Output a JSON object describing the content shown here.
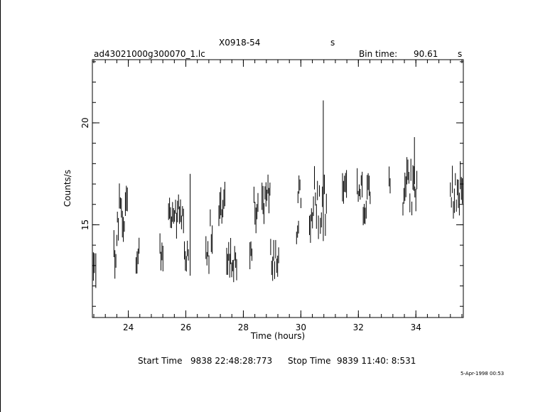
{
  "header": {
    "object": "X0918-54",
    "object_suffix": "s",
    "filename": "ad43021000g300070_1.lc",
    "bin_label": "Bin time:",
    "bin_value": "90.61",
    "bin_unit": "s"
  },
  "footer": {
    "start_label": "Start Time",
    "start_value": "9838 22:48:28:773",
    "stop_label": "Stop Time",
    "stop_value": "9839 11:40: 8:531",
    "date": "5-Apr-1998 00:53"
  },
  "chart_data": {
    "type": "scatter",
    "xlabel": "Time (hours)",
    "ylabel": "Counts/s",
    "xlim": [
      22.75,
      35.65
    ],
    "ylim": [
      10.45,
      23.1
    ],
    "xticks": [
      24,
      26,
      28,
      30,
      32,
      34
    ],
    "yticks": [
      15,
      20
    ],
    "minor_x_step": 0.4,
    "minor_y_step": 1,
    "series": [
      {
        "segments": [
          {
            "t0": 22.75,
            "t1": 22.85,
            "mean": 12.9,
            "spread": 0.8
          },
          {
            "t0": 23.5,
            "t1": 23.62,
            "mean": 13.6,
            "spread": 0.8
          },
          {
            "t0": 23.62,
            "t1": 23.98,
            "mean": 15.6,
            "spread": 1.2
          },
          {
            "t0": 24.27,
            "t1": 24.38,
            "mean": 13.6,
            "spread": 0.8
          },
          {
            "t0": 25.1,
            "t1": 25.21,
            "mean": 13.6,
            "spread": 0.8
          },
          {
            "t0": 25.4,
            "t1": 25.95,
            "mean": 15.5,
            "spread": 0.9
          },
          {
            "t0": 25.95,
            "t1": 26.1,
            "mean": 13.4,
            "spread": 0.8
          },
          {
            "t0": 26.7,
            "t1": 26.81,
            "mean": 13.4,
            "spread": 0.8
          },
          {
            "t0": 26.85,
            "t1": 26.93,
            "mean": 14.9,
            "spread": 1.0
          },
          {
            "t0": 27.15,
            "t1": 27.38,
            "mean": 15.8,
            "spread": 1.0
          },
          {
            "t0": 27.42,
            "t1": 27.8,
            "mean": 13.2,
            "spread": 0.8
          },
          {
            "t0": 28.23,
            "t1": 28.33,
            "mean": 13.3,
            "spread": 0.8
          },
          {
            "t0": 28.37,
            "t1": 28.51,
            "mean": 15.9,
            "spread": 1.1
          },
          {
            "t0": 28.65,
            "t1": 28.93,
            "mean": 16.3,
            "spread": 1.1
          },
          {
            "t0": 28.95,
            "t1": 29.25,
            "mean": 13.4,
            "spread": 0.8
          },
          {
            "t0": 29.85,
            "t1": 29.93,
            "mean": 14.1,
            "spread": 1.0
          },
          {
            "t0": 29.9,
            "t1": 30.03,
            "mean": 16.7,
            "spread": 0.9
          },
          {
            "t0": 30.3,
            "t1": 30.9,
            "mean": 16.0,
            "spread": 1.7
          },
          {
            "t0": 31.45,
            "t1": 31.62,
            "mean": 16.4,
            "spread": 1.0
          },
          {
            "t0": 31.96,
            "t1": 32.42,
            "mean": 16.3,
            "spread": 1.2
          },
          {
            "t0": 33.07,
            "t1": 33.12,
            "mean": 17.3,
            "spread": 0.6
          },
          {
            "t0": 33.55,
            "t1": 34.05,
            "mean": 16.8,
            "spread": 1.3
          },
          {
            "t0": 35.2,
            "t1": 35.65,
            "mean": 16.5,
            "spread": 1.2
          }
        ],
        "spikes": [
          {
            "t": 30.78,
            "y0": 14.2,
            "y1": 21.1
          },
          {
            "t": 26.15,
            "y0": 12.5,
            "y1": 17.5
          },
          {
            "t": 22.87,
            "y0": 11.9,
            "y1": 13.6
          },
          {
            "t": 33.95,
            "y0": 17.0,
            "y1": 19.3
          }
        ]
      }
    ]
  }
}
